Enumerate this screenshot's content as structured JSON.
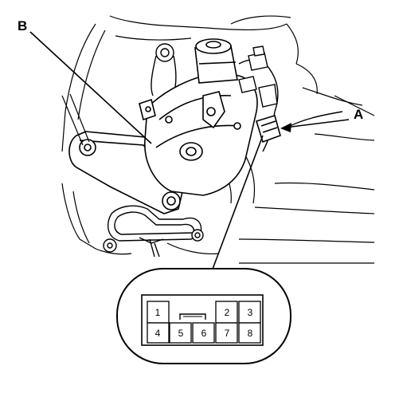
{
  "callouts": {
    "a": "A",
    "b": "B"
  },
  "connector": {
    "top_row": [
      "1",
      "2",
      "3"
    ],
    "bottom_row": [
      "4",
      "5",
      "6",
      "7",
      "8"
    ]
  },
  "colors": {
    "ink": "#000000",
    "paper": "#ffffff"
  }
}
